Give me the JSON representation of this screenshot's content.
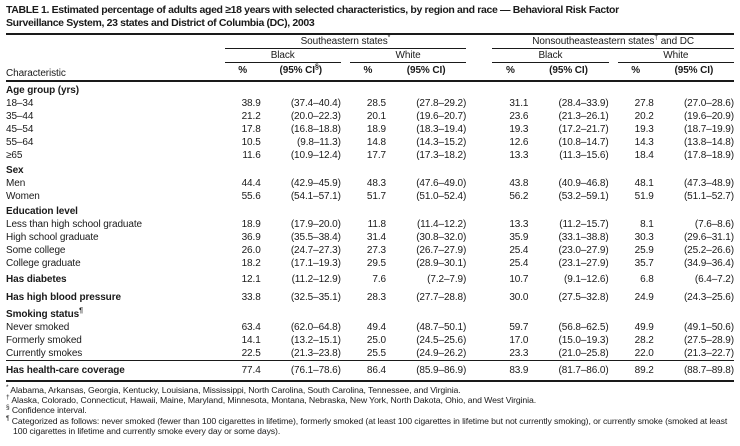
{
  "title_lines": [
    "TABLE 1. Estimated percentage of adults aged ≥18 years with selected characteristics, by region and race — Behavioral Risk Factor",
    "Surveillance System, 23 states and District of Columbia (DC), 2003"
  ],
  "table": {
    "characteristic_header": "Characteristic",
    "col_groups": [
      "Southeastern states*",
      "Nonsoutheasteastern states† and DC"
    ],
    "race_headers": [
      "Black",
      "White",
      "Black",
      "White"
    ],
    "pct_header": "%",
    "ci_headers": [
      "(95% CI§)",
      "(95% CI)",
      "(95% CI)",
      "(95% CI)"
    ],
    "rows": [
      {
        "type": "section",
        "label": "Age group (yrs)"
      },
      {
        "type": "data",
        "indent": 1,
        "label": "18–34",
        "values": [
          "38.9",
          "(37.4–40.4)",
          "28.5",
          "(27.8–29.2)",
          "31.1",
          "(28.4–33.9)",
          "27.8",
          "(27.0–28.6)"
        ]
      },
      {
        "type": "data",
        "indent": 1,
        "label": "35–44",
        "values": [
          "21.2",
          "(20.0–22.3)",
          "20.1",
          "(19.6–20.7)",
          "23.6",
          "(21.3–26.1)",
          "20.2",
          "(19.6–20.9)"
        ]
      },
      {
        "type": "data",
        "indent": 1,
        "label": "45–54",
        "values": [
          "17.8",
          "(16.8–18.8)",
          "18.9",
          "(18.3–19.4)",
          "19.3",
          "(17.2–21.7)",
          "19.3",
          "(18.7–19.9)"
        ]
      },
      {
        "type": "data",
        "indent": 1,
        "label": "55–64",
        "values": [
          "10.5",
          "(9.8–11.3)",
          "14.8",
          "(14.3–15.2)",
          "12.6",
          "(10.8–14.7)",
          "14.3",
          "(13.8–14.8)"
        ]
      },
      {
        "type": "data",
        "indent": 2,
        "label": "≥65",
        "values": [
          "11.6",
          "(10.9–12.4)",
          "17.7",
          "(17.3–18.2)",
          "13.3",
          "(11.3–15.6)",
          "18.4",
          "(17.8–18.9)"
        ]
      },
      {
        "type": "section",
        "label": "Sex"
      },
      {
        "type": "data",
        "indent": 1,
        "label": "Men",
        "values": [
          "44.4",
          "(42.9–45.9)",
          "48.3",
          "(47.6–49.0)",
          "43.8",
          "(40.9–46.8)",
          "48.1",
          "(47.3–48.9)"
        ]
      },
      {
        "type": "data",
        "indent": 1,
        "label": "Women",
        "values": [
          "55.6",
          "(54.1–57.1)",
          "51.7",
          "(51.0–52.4)",
          "56.2",
          "(53.2–59.1)",
          "51.9",
          "(51.1–52.7)"
        ]
      },
      {
        "type": "section",
        "label": "Education level"
      },
      {
        "type": "data",
        "indent": 1,
        "label": "Less than high school graduate",
        "values": [
          "18.9",
          "(17.9–20.0)",
          "11.8",
          "(11.4–12.2)",
          "13.3",
          "(11.2–15.7)",
          "8.1",
          "(7.6–8.6)"
        ]
      },
      {
        "type": "data",
        "indent": 1,
        "label": "High school graduate",
        "values": [
          "36.9",
          "(35.5–38.4)",
          "31.4",
          "(30.8–32.0)",
          "35.9",
          "(33.1–38.8)",
          "30.3",
          "(29.6–31.1)"
        ]
      },
      {
        "type": "data",
        "indent": 1,
        "label": "Some college",
        "values": [
          "26.0",
          "(24.7–27.3)",
          "27.3",
          "(26.7–27.9)",
          "25.4",
          "(23.0–27.9)",
          "25.9",
          "(25.2–26.6)"
        ]
      },
      {
        "type": "data",
        "indent": 1,
        "label": "College graduate",
        "values": [
          "18.2",
          "(17.1–19.3)",
          "29.5",
          "(28.9–30.1)",
          "25.4",
          "(23.1–27.9)",
          "35.7",
          "(34.9–36.4)"
        ]
      },
      {
        "type": "bold-data",
        "label": "Has diabetes",
        "values": [
          "12.1",
          "(11.2–12.9)",
          "7.6",
          "(7.2–7.9)",
          "10.7",
          "(9.1–12.6)",
          "6.8",
          "(6.4–7.2)"
        ]
      },
      {
        "type": "bold-data",
        "label": "Has high blood pressure",
        "values": [
          "33.8",
          "(32.5–35.1)",
          "28.3",
          "(27.7–28.8)",
          "30.0",
          "(27.5–32.8)",
          "24.9",
          "(24.3–25.6)"
        ]
      },
      {
        "type": "section",
        "label": "Smoking status¶"
      },
      {
        "type": "data",
        "indent": 1,
        "label": "Never smoked",
        "values": [
          "63.4",
          "(62.0–64.8)",
          "49.4",
          "(48.7–50.1)",
          "59.7",
          "(56.8–62.5)",
          "49.9",
          "(49.1–50.6)"
        ]
      },
      {
        "type": "data",
        "indent": 1,
        "label": "Formerly smoked",
        "values": [
          "14.1",
          "(13.2–15.1)",
          "25.0",
          "(24.5–25.6)",
          "17.0",
          "(15.0–19.3)",
          "28.2",
          "(27.5–28.9)"
        ]
      },
      {
        "type": "data",
        "indent": 1,
        "label": "Currently smokes",
        "values": [
          "22.5",
          "(21.3–23.8)",
          "25.5",
          "(24.9–26.2)",
          "23.3",
          "(21.0–25.8)",
          "22.0",
          "(21.3–22.7)"
        ]
      },
      {
        "type": "total",
        "label": "Has health-care coverage",
        "values": [
          "77.4",
          "(76.1–78.6)",
          "86.4",
          "(85.9–86.9)",
          "83.9",
          "(81.7–86.0)",
          "89.2",
          "(88.7–89.8)"
        ]
      }
    ]
  },
  "footnotes": [
    {
      "marker": "*",
      "text": "Alabama, Arkansas, Georgia, Kentucky, Louisiana, Mississippi, North Carolina, South Carolina, Tennessee, and Virginia."
    },
    {
      "marker": "†",
      "text": "Alaska, Colorado, Connecticut, Hawaii, Maine, Maryland, Minnesota, Montana, Nebraska, New York, North Dakota, Ohio, and West Virginia."
    },
    {
      "marker": "§",
      "text": "Confidence interval."
    },
    {
      "marker": "¶",
      "text": "Categorized as follows: never smoked (fewer than 100 cigarettes in lifetime), formerly smoked (at least 100 cigarettes in lifetime but not currently smoking), or currently smoke (smoked at least 100 cigarettes in lifetime and currently smoke every day or some days)."
    }
  ]
}
